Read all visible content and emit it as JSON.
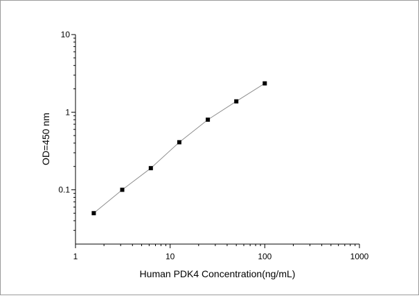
{
  "chart_data": {
    "type": "scatter",
    "title": "",
    "xlabel": "Human PDK4 Concentration(ng/mL)",
    "ylabel": "OD=450 nm",
    "x_scale": "log",
    "y_scale": "log",
    "xlim": [
      1,
      1000
    ],
    "ylim": [
      0.02,
      10
    ],
    "x_ticks": [
      1,
      10,
      100,
      1000
    ],
    "x_tick_labels": [
      "1",
      "10",
      "100",
      "1000"
    ],
    "y_ticks": [
      0.1,
      1,
      10
    ],
    "y_tick_labels": [
      "0.1",
      "1",
      "10"
    ],
    "grid": false,
    "legend": "none",
    "marker_color": "#000000",
    "line_color": "#8c8c8c",
    "series": [
      {
        "x": [
          1.56,
          3.12,
          6.25,
          12.5,
          25,
          50,
          100
        ],
        "y": [
          0.05,
          0.1,
          0.19,
          0.41,
          0.8,
          1.38,
          2.35
        ]
      }
    ]
  }
}
